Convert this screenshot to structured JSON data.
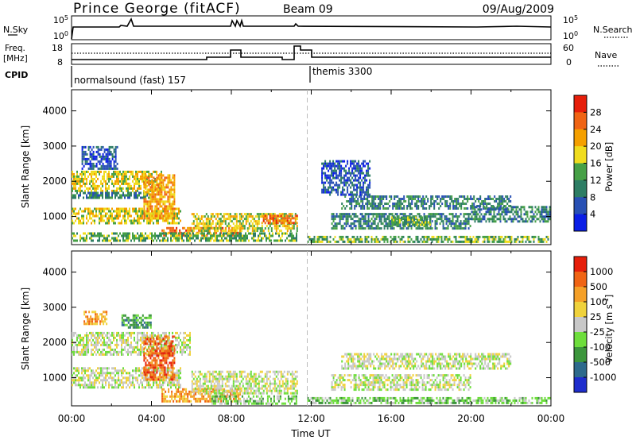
{
  "header": {
    "title": "Prince George (fitACF)",
    "beam": "Beam 09",
    "date": "09/Aug/2009"
  },
  "noise_panel": {
    "left_label": "N.Sky",
    "right_label": "N.Search",
    "left_ticks": [
      "10^5",
      "10^0"
    ],
    "right_ticks": [
      "10^5",
      "10^0"
    ]
  },
  "freq_panel": {
    "left_label_1": "Freq.",
    "left_label_2": "[MHz]",
    "right_label": "Nave",
    "left_ticks": [
      "18",
      "8"
    ],
    "right_ticks": [
      "60",
      "0"
    ]
  },
  "cpid": {
    "label": "CPID",
    "segments": [
      {
        "name": "normalsound (fast) 157",
        "start_hour": 0,
        "end_hour": 11.8
      },
      {
        "name": "themis 3300",
        "start_hour": 11.8,
        "end_hour": 24
      }
    ]
  },
  "colors": {
    "power": [
      "#0a1ee6",
      "#2850b4",
      "#2d7d64",
      "#46a046",
      "#f0dc1e",
      "#f5a000",
      "#f06414",
      "#e61e0a"
    ],
    "velocity": [
      "#1e2dcd",
      "#2d6a8c",
      "#3c963c",
      "#6ede3c",
      "#c8c8c8",
      "#f0d23c",
      "#f5a028",
      "#f06414",
      "#e61e0a"
    ]
  },
  "chart_data": [
    {
      "type": "heatmap",
      "name": "power",
      "ylabel": "Slant Range [km]",
      "ylim": [
        200,
        4600
      ],
      "yticks": [
        "4000",
        "3000",
        "2000",
        "1000"
      ],
      "colorbar_label": "Power [dB]",
      "colorbar_ticks": [
        "28",
        "24",
        "20",
        "16",
        "12",
        "8",
        "4"
      ],
      "regions": [
        {
          "t": [
            0.0,
            4.5
          ],
          "r": [
            1700,
            2300
          ],
          "level": 4
        },
        {
          "t": [
            0.0,
            4.0
          ],
          "r": [
            1500,
            1700
          ],
          "level": 2
        },
        {
          "t": [
            0.5,
            2.3
          ],
          "r": [
            2300,
            3000
          ],
          "level": 1
        },
        {
          "t": [
            0.0,
            5.5
          ],
          "r": [
            750,
            1250
          ],
          "level": 4
        },
        {
          "t": [
            3.6,
            5.2
          ],
          "r": [
            900,
            2200
          ],
          "level": 5
        },
        {
          "t": [
            4.5,
            8.5
          ],
          "r": [
            400,
            700
          ],
          "level": 6
        },
        {
          "t": [
            6.0,
            11.3
          ],
          "r": [
            550,
            1100
          ],
          "level": 4
        },
        {
          "t": [
            9.5,
            11.3
          ],
          "r": [
            800,
            1050
          ],
          "level": 6
        },
        {
          "t": [
            0.0,
            11.3
          ],
          "r": [
            250,
            550
          ],
          "level": 3
        },
        {
          "t": [
            11.8,
            24.0
          ],
          "r": [
            250,
            450
          ],
          "level": 3
        },
        {
          "t": [
            13.5,
            22.0
          ],
          "r": [
            1200,
            1600
          ],
          "level": 2
        },
        {
          "t": [
            13.0,
            20.0
          ],
          "r": [
            600,
            1100
          ],
          "level": 2
        },
        {
          "t": [
            16.0,
            18.0
          ],
          "r": [
            700,
            1000
          ],
          "level": 3
        },
        {
          "t": [
            20.0,
            24.0
          ],
          "r": [
            800,
            1300
          ],
          "level": 2
        },
        {
          "t": [
            12.5,
            15.0
          ],
          "r": [
            1600,
            2600
          ],
          "level": 1
        }
      ]
    },
    {
      "type": "heatmap",
      "name": "velocity",
      "xlabel": "Time UT",
      "ylabel": "Slant Range [km]",
      "ylim": [
        200,
        4600
      ],
      "yticks": [
        "4000",
        "3000",
        "2000",
        "1000"
      ],
      "xlim": [
        0,
        24
      ],
      "xticks": [
        "00:00",
        "04:00",
        "08:00",
        "12:00",
        "16:00",
        "20:00",
        "00:00"
      ],
      "colorbar_label": "Velocity [m s^-1]",
      "colorbar_ticks": [
        "1000",
        "500",
        "100",
        "25",
        "-25",
        "-100",
        "-500",
        "-1000"
      ],
      "regions": [
        {
          "t": [
            0.0,
            6.0
          ],
          "r": [
            1600,
            2300
          ],
          "level": 4
        },
        {
          "t": [
            0.0,
            5.5
          ],
          "r": [
            700,
            1300
          ],
          "level": 4
        },
        {
          "t": [
            3.6,
            5.2
          ],
          "r": [
            900,
            2200
          ],
          "level": 7
        },
        {
          "t": [
            4.5,
            8.5
          ],
          "r": [
            300,
            700
          ],
          "level": 6
        },
        {
          "t": [
            6.0,
            11.3
          ],
          "r": [
            500,
            1200
          ],
          "level": 4
        },
        {
          "t": [
            7.0,
            11.3
          ],
          "r": [
            250,
            500
          ],
          "level": 3
        },
        {
          "t": [
            11.8,
            24.0
          ],
          "r": [
            250,
            450
          ],
          "level": 3
        },
        {
          "t": [
            13.5,
            22.0
          ],
          "r": [
            1200,
            1700
          ],
          "level": 4
        },
        {
          "t": [
            13.0,
            20.0
          ],
          "r": [
            600,
            1100
          ],
          "level": 4
        },
        {
          "t": [
            2.5,
            4.0
          ],
          "r": [
            2400,
            2800
          ],
          "level": 2
        },
        {
          "t": [
            0.6,
            1.8
          ],
          "r": [
            2500,
            2900
          ],
          "level": 6
        }
      ]
    }
  ]
}
